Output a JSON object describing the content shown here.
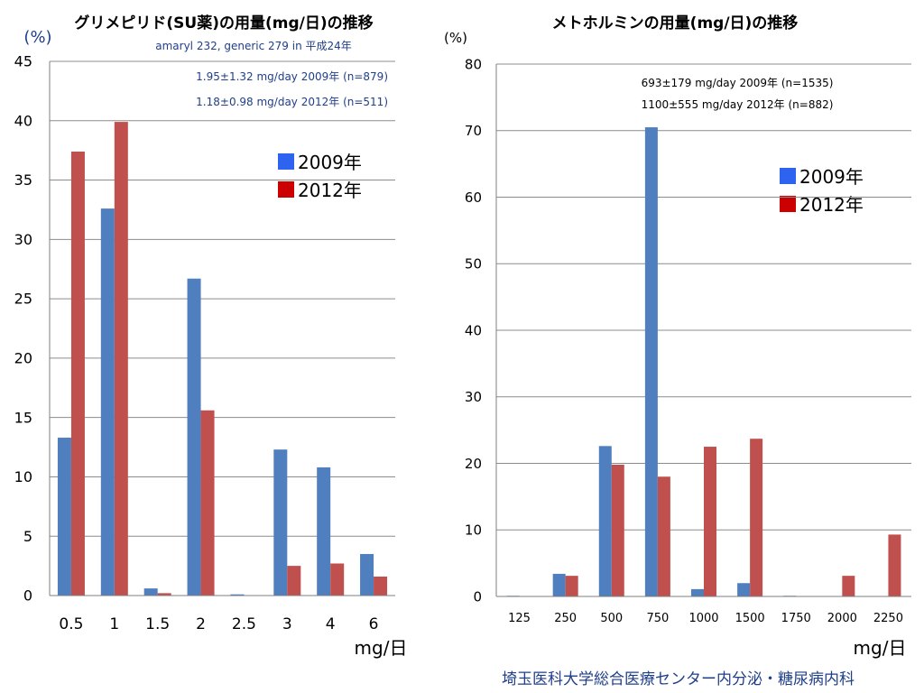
{
  "footer": "埼玉医科大学総合医療センター内分泌・糖尿病内科",
  "colors": {
    "series_2009": "#4f7fbf",
    "series_2012": "#c0504d",
    "legend_2009": "#2e63f0",
    "legend_2012": "#cc0000",
    "note_text": "#1f3f8a",
    "grid": "#8c8c8c"
  },
  "chart_data": [
    {
      "type": "bar",
      "title": "グリメピリド(SU薬)の用量(mg/日)の推移",
      "subtitle": "amaryl 232, generic 279 in 平成24年",
      "annotations": [
        "1.95±1.32 mg/day 2009年 (n=879)",
        "1.18±0.98 mg/day 2012年 (n=511)"
      ],
      "xlabel": "mg/日",
      "ylabel": "(%)",
      "ylim": [
        0,
        45
      ],
      "yticks": [
        0,
        5,
        10,
        15,
        20,
        25,
        30,
        35,
        40,
        45
      ],
      "grid": true,
      "legend_position": "top-right",
      "categories": [
        "0.5",
        "1",
        "1.5",
        "2",
        "2.5",
        "3",
        "4",
        "6"
      ],
      "series": [
        {
          "name": "2009年",
          "values": [
            13.3,
            32.6,
            0.6,
            26.7,
            0.1,
            12.3,
            10.8,
            3.5
          ]
        },
        {
          "name": "2012年",
          "values": [
            37.4,
            39.9,
            0.2,
            15.6,
            0,
            2.5,
            2.7,
            1.6
          ]
        }
      ]
    },
    {
      "type": "bar",
      "title": "メトホルミンの用量(mg/日)の推移",
      "annotations": [
        "693±179 mg/day 2009年 (n=1535)",
        "1100±555 mg/day 2012年 (n=882)"
      ],
      "xlabel": "mg/日",
      "ylabel": "(%)",
      "ylim": [
        0,
        80
      ],
      "yticks": [
        0,
        10,
        20,
        30,
        40,
        50,
        60,
        70,
        80
      ],
      "grid": true,
      "legend_position": "top-right",
      "categories": [
        "125",
        "250",
        "500",
        "750",
        "1000",
        "1500",
        "1750",
        "2000",
        "2250"
      ],
      "series": [
        {
          "name": "2009年",
          "values": [
            0.1,
            3.4,
            22.6,
            70.5,
            1.1,
            2.0,
            0.1,
            0,
            0
          ]
        },
        {
          "name": "2012年",
          "values": [
            0,
            3.1,
            19.8,
            18.0,
            22.5,
            23.7,
            0,
            3.1,
            9.3
          ]
        }
      ]
    }
  ]
}
